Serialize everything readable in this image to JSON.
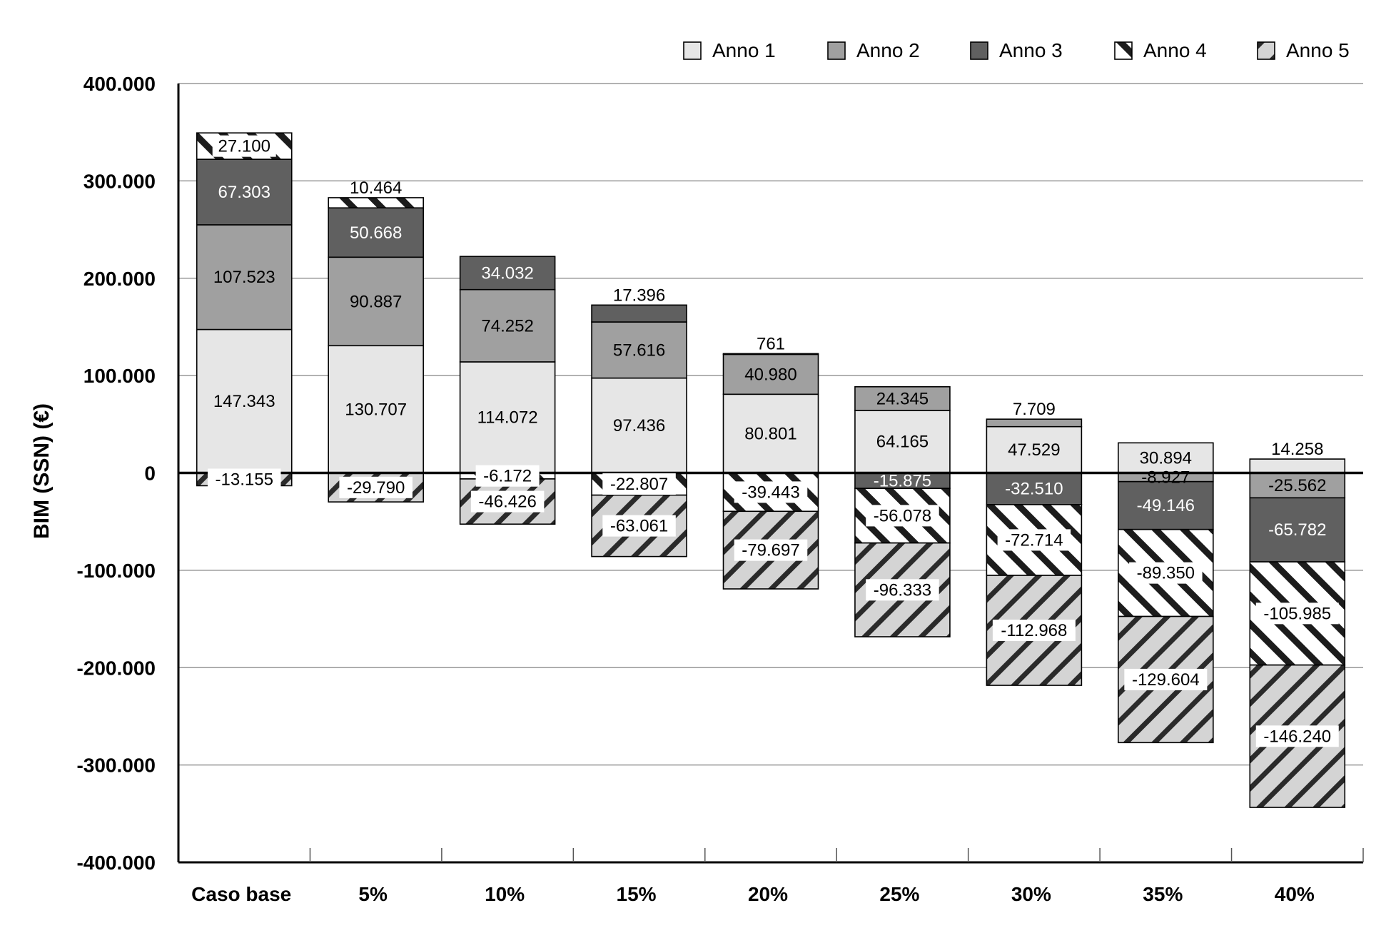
{
  "chart_data": {
    "type": "bar",
    "stacked": true,
    "ylabel": "BIM (SSN) (€)",
    "xlabel": "",
    "title": "",
    "ylim": [
      -400000,
      400000
    ],
    "yticks": [
      400000,
      300000,
      200000,
      100000,
      0,
      -100000,
      -200000,
      -300000,
      -400000
    ],
    "ytick_labels": [
      "400.000",
      "300.000",
      "200.000",
      "100.000",
      "0",
      "-100.000",
      "-200.000",
      "-300.000",
      "-400.000"
    ],
    "grid": true,
    "legend_position": "top-right",
    "categories": [
      "Caso base",
      "5%",
      "10%",
      "15%",
      "20%",
      "25%",
      "30%",
      "35%",
      "40%"
    ],
    "series": [
      {
        "name": "Anno 1",
        "values": [
          147343,
          130707,
          114072,
          97436,
          80801,
          64165,
          47529,
          30894,
          14258
        ],
        "labels": [
          "147.343",
          "130.707",
          "114.072",
          "97.436",
          "80.801",
          "64.165",
          "47.529",
          "30.894",
          "14.258"
        ]
      },
      {
        "name": "Anno 2",
        "values": [
          107523,
          90887,
          74252,
          57616,
          40980,
          24345,
          7709,
          -8927,
          -25562
        ],
        "labels": [
          "107.523",
          "90.887",
          "74.252",
          "57.616",
          "40.980",
          "24.345",
          "7.709",
          "-8.927",
          "-25.562"
        ]
      },
      {
        "name": "Anno 3",
        "values": [
          67303,
          50668,
          34032,
          17396,
          761,
          -15875,
          -32510,
          -49146,
          -65782
        ],
        "labels": [
          "67.303",
          "50.668",
          "34.032",
          "17.396",
          "761",
          "-15.875",
          "-32.510",
          "-49.146",
          "-65.782"
        ]
      },
      {
        "name": "Anno 4",
        "values": [
          27100,
          10464,
          -6172,
          -22807,
          -39443,
          -56078,
          -72714,
          -89350,
          -105985
        ],
        "labels": [
          "27.100",
          "10.464",
          "-6.172",
          "-22.807",
          "-39.443",
          "-56.078",
          "-72.714",
          "-89.350",
          "-105.985"
        ]
      },
      {
        "name": "Anno 5",
        "values": [
          -13155,
          -29790,
          -46426,
          -63061,
          -79697,
          -96333,
          -112968,
          -129604,
          -146240
        ],
        "labels": [
          "-13.155",
          "-29.790",
          "-46.426",
          "-63.061",
          "-79.697",
          "-96.333",
          "-112.968",
          "-129.604",
          "-146.240"
        ]
      }
    ]
  },
  "colors": {
    "anno1": "#e6e6e6",
    "anno2": "#a0a0a0",
    "anno3": "#606060",
    "stripe": "#1c1c1c",
    "anno5_bg": "#d4d4d4",
    "grid": "#999999",
    "axis": "#000000"
  }
}
